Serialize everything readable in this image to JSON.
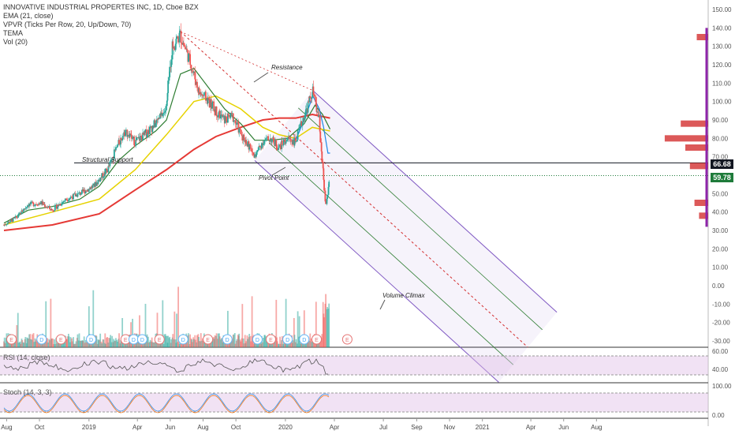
{
  "legend": {
    "title": "INNOVATIVE INDUSTRIAL PROPERTES INC, 1D, Cboe BZX",
    "ema": "EMA (21, close)",
    "vpvr": "VPVR (Ticks Per Row, 20, Up/Down, 70)",
    "tema": "TEMA",
    "vol": "Vol (20)"
  },
  "annotations": {
    "resistance": "Resistance",
    "structural_support": "Structural Support",
    "pivot_point": "Pivot Point",
    "volume_climax": "Volume Climax"
  },
  "price_tags": {
    "resistance_level": "66.68",
    "last": "59.78"
  },
  "panels": {
    "rsi_title": "RSI (14, close)",
    "stoch_title": "Stoch (14, 3, 3)"
  },
  "colors": {
    "up": "#26a69a",
    "down": "#ef5350",
    "ema21": "#2e7d32",
    "sma50": "#e6d200",
    "sma200": "#e53935",
    "tema": "#1e88e5",
    "pitchfork": "#7e57c2",
    "vpvr": "#d32f2f"
  },
  "chart_data": {
    "type": "line",
    "title": "INNOVATIVE INDUSTRIAL PROPERTES INC, 1D, Cboe BZX",
    "x_labels": [
      "Aug",
      "Oct",
      "2019",
      "Apr",
      "Jun",
      "Aug",
      "Oct",
      "2020",
      "Apr",
      "Jul",
      "Sep",
      "Nov",
      "2021",
      "Apr",
      "Jun",
      "Aug"
    ],
    "y_ticks": [
      "150.00",
      "140.00",
      "130.00",
      "120.00",
      "110.00",
      "100.00",
      "90.00",
      "80.00",
      "70.00",
      "60.00",
      "50.00",
      "40.00",
      "30.00",
      "20.00",
      "10.00",
      "0.00",
      "-10.00",
      "-20.00",
      "-30.00"
    ],
    "ylim": [
      -30,
      150
    ],
    "close_path": [
      [
        "2018-07-27",
        33
      ],
      [
        "2018-08-20",
        37
      ],
      [
        "2018-09-10",
        44
      ],
      [
        "2018-10-05",
        45
      ],
      [
        "2018-10-25",
        41
      ],
      [
        "2018-11-20",
        47
      ],
      [
        "2018-12-15",
        50
      ],
      [
        "2019-01-10",
        54
      ],
      [
        "2019-02-05",
        63
      ],
      [
        "2019-02-25",
        77
      ],
      [
        "2019-03-10",
        84
      ],
      [
        "2019-03-28",
        78
      ],
      [
        "2019-04-15",
        82
      ],
      [
        "2019-05-05",
        88
      ],
      [
        "2019-05-25",
        96
      ],
      [
        "2019-06-05",
        130
      ],
      [
        "2019-06-20",
        136
      ],
      [
        "2019-07-01",
        128
      ],
      [
        "2019-07-10",
        120
      ],
      [
        "2019-07-25",
        105
      ],
      [
        "2019-08-10",
        101
      ],
      [
        "2019-08-25",
        95
      ],
      [
        "2019-09-10",
        90
      ],
      [
        "2019-09-25",
        92
      ],
      [
        "2019-10-10",
        83
      ],
      [
        "2019-10-25",
        76
      ],
      [
        "2019-11-05",
        70
      ],
      [
        "2019-11-20",
        78
      ],
      [
        "2019-12-05",
        80
      ],
      [
        "2019-12-20",
        75
      ],
      [
        "2020-01-05",
        80
      ],
      [
        "2020-01-20",
        78
      ],
      [
        "2020-02-05",
        92
      ],
      [
        "2020-02-15",
        100
      ],
      [
        "2020-02-21",
        106
      ],
      [
        "2020-02-28",
        96
      ],
      [
        "2020-03-04",
        90
      ],
      [
        "2020-03-09",
        70
      ],
      [
        "2020-03-16",
        44
      ],
      [
        "2020-03-20",
        49
      ],
      [
        "2020-03-24",
        59.78
      ]
    ],
    "ema21": [
      [
        "2018-07-27",
        34
      ],
      [
        "2018-09-10",
        41
      ],
      [
        "2018-10-25",
        43
      ],
      [
        "2018-12-15",
        47
      ],
      [
        "2019-01-20",
        54
      ],
      [
        "2019-02-25",
        68
      ],
      [
        "2019-03-28",
        76
      ],
      [
        "2019-05-05",
        84
      ],
      [
        "2019-05-25",
        90
      ],
      [
        "2019-06-20",
        115
      ],
      [
        "2019-07-15",
        118
      ],
      [
        "2019-08-10",
        108
      ],
      [
        "2019-09-10",
        96
      ],
      [
        "2019-10-10",
        88
      ],
      [
        "2019-11-05",
        79
      ],
      [
        "2019-12-05",
        79
      ],
      [
        "2020-01-05",
        80
      ],
      [
        "2020-02-05",
        88
      ],
      [
        "2020-02-25",
        98
      ],
      [
        "2020-03-10",
        93
      ],
      [
        "2020-03-24",
        85
      ]
    ],
    "sma50": [
      [
        "2018-07-27",
        33
      ],
      [
        "2018-10-25",
        40
      ],
      [
        "2019-01-20",
        47
      ],
      [
        "2019-03-28",
        63
      ],
      [
        "2019-05-25",
        82
      ],
      [
        "2019-07-15",
        100
      ],
      [
        "2019-08-25",
        103
      ],
      [
        "2019-10-10",
        96
      ],
      [
        "2019-11-20",
        86
      ],
      [
        "2019-12-20",
        82
      ],
      [
        "2020-01-20",
        80
      ],
      [
        "2020-02-20",
        86
      ],
      [
        "2020-03-24",
        84
      ]
    ],
    "sma200": [
      [
        "2018-07-27",
        30
      ],
      [
        "2018-10-25",
        33
      ],
      [
        "2019-01-20",
        39
      ],
      [
        "2019-03-28",
        52
      ],
      [
        "2019-05-25",
        63
      ],
      [
        "2019-07-15",
        74
      ],
      [
        "2019-08-25",
        81
      ],
      [
        "2019-10-10",
        86
      ],
      [
        "2019-11-20",
        90
      ],
      [
        "2019-12-20",
        91
      ],
      [
        "2020-01-20",
        91
      ],
      [
        "2020-02-20",
        93
      ],
      [
        "2020-03-24",
        91
      ]
    ],
    "tema": [
      [
        "2020-01-20",
        79
      ],
      [
        "2020-02-05",
        90
      ],
      [
        "2020-02-21",
        103
      ],
      [
        "2020-03-04",
        96
      ],
      [
        "2020-03-12",
        86
      ],
      [
        "2020-03-20",
        72
      ],
      [
        "2020-03-24",
        72
      ]
    ],
    "resistance_level": 66.68,
    "last_price": 59.78,
    "pitchfork": {
      "pivot": [
        "2019-06-20",
        138
      ],
      "h1": [
        "2019-11-05",
        68
      ],
      "h2": [
        "2020-02-21",
        106
      ]
    },
    "volume_profile_peaks": [
      [
        135,
        0.25
      ],
      [
        88,
        0.6
      ],
      [
        80,
        0.95
      ],
      [
        75,
        0.5
      ],
      [
        65,
        0.4
      ],
      [
        45,
        0.3
      ],
      [
        38,
        0.2
      ]
    ],
    "rsi": {
      "levels": [
        70,
        30
      ],
      "axis_ticks": [
        "60.00",
        "40.00"
      ]
    },
    "stoch": {
      "levels": [
        80,
        20
      ],
      "axis_ticks": [
        "100.00",
        "0.00"
      ]
    },
    "event_markers": [
      [
        "2018-08-10",
        "E"
      ],
      [
        "2018-10-05",
        "D"
      ],
      [
        "2018-11-10",
        "E"
      ],
      [
        "2019-01-05",
        "D"
      ],
      [
        "2019-03-10",
        "E"
      ],
      [
        "2019-03-25",
        "D"
      ],
      [
        "2019-04-10",
        "D"
      ],
      [
        "2019-05-12",
        "E"
      ],
      [
        "2019-06-25",
        "D"
      ],
      [
        "2019-08-10",
        "E"
      ],
      [
        "2019-09-15",
        "D"
      ],
      [
        "2019-11-10",
        "D"
      ],
      [
        "2019-12-05",
        "E"
      ],
      [
        "2020-01-05",
        "D"
      ],
      [
        "2020-02-05",
        "D"
      ],
      [
        "2020-02-28",
        "E"
      ],
      [
        "2020-04-25",
        "E"
      ]
    ],
    "series": [
      {
        "name": "EMA (21, close)"
      },
      {
        "name": "TEMA"
      }
    ]
  }
}
